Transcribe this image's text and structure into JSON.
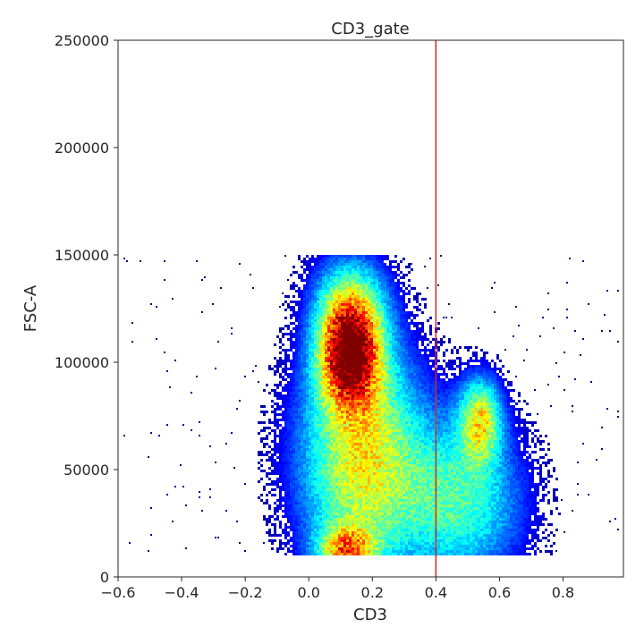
{
  "chart_data": {
    "type": "scatter",
    "title": "CD3_gate",
    "xlabel": "CD3",
    "ylabel": "FSC-A",
    "xlim": [
      -0.6,
      0.99
    ],
    "ylim": [
      0,
      250000
    ],
    "xticks": [
      -0.6,
      -0.4,
      -0.2,
      0.0,
      0.2,
      0.4,
      0.6,
      0.8
    ],
    "xtick_labels": [
      "−0.6",
      "−0.4",
      "−0.2",
      "0.0",
      "0.2",
      "0.4",
      "0.6",
      "0.8"
    ],
    "yticks": [
      0,
      50000,
      100000,
      150000,
      200000,
      250000
    ],
    "ytick_labels": [
      "0",
      "50000",
      "100000",
      "150000",
      "200000",
      "250000"
    ],
    "grid": false,
    "colormap": "jet",
    "gate": {
      "axis": "x",
      "value": 0.4,
      "color": "#d62728"
    },
    "density_clusters": [
      {
        "x": 0.13,
        "y": 105000,
        "sx": 0.065,
        "sy": 17000,
        "weight": 1.0
      },
      {
        "x": 0.12,
        "y": 12000,
        "sx": 0.06,
        "sy": 8000,
        "weight": 0.55
      },
      {
        "x": 0.54,
        "y": 73000,
        "sx": 0.045,
        "sy": 13000,
        "weight": 0.5
      },
      {
        "x": 0.17,
        "y": 55000,
        "sx": 0.13,
        "sy": 35000,
        "weight": 0.55
      },
      {
        "x": 0.48,
        "y": 35000,
        "sx": 0.13,
        "sy": 25000,
        "weight": 0.35
      },
      {
        "x": 0.13,
        "y": 130000,
        "sx": 0.08,
        "sy": 15000,
        "weight": 0.25
      }
    ],
    "data_bounds": {
      "ymin": 10000,
      "ymax": 150000
    }
  }
}
